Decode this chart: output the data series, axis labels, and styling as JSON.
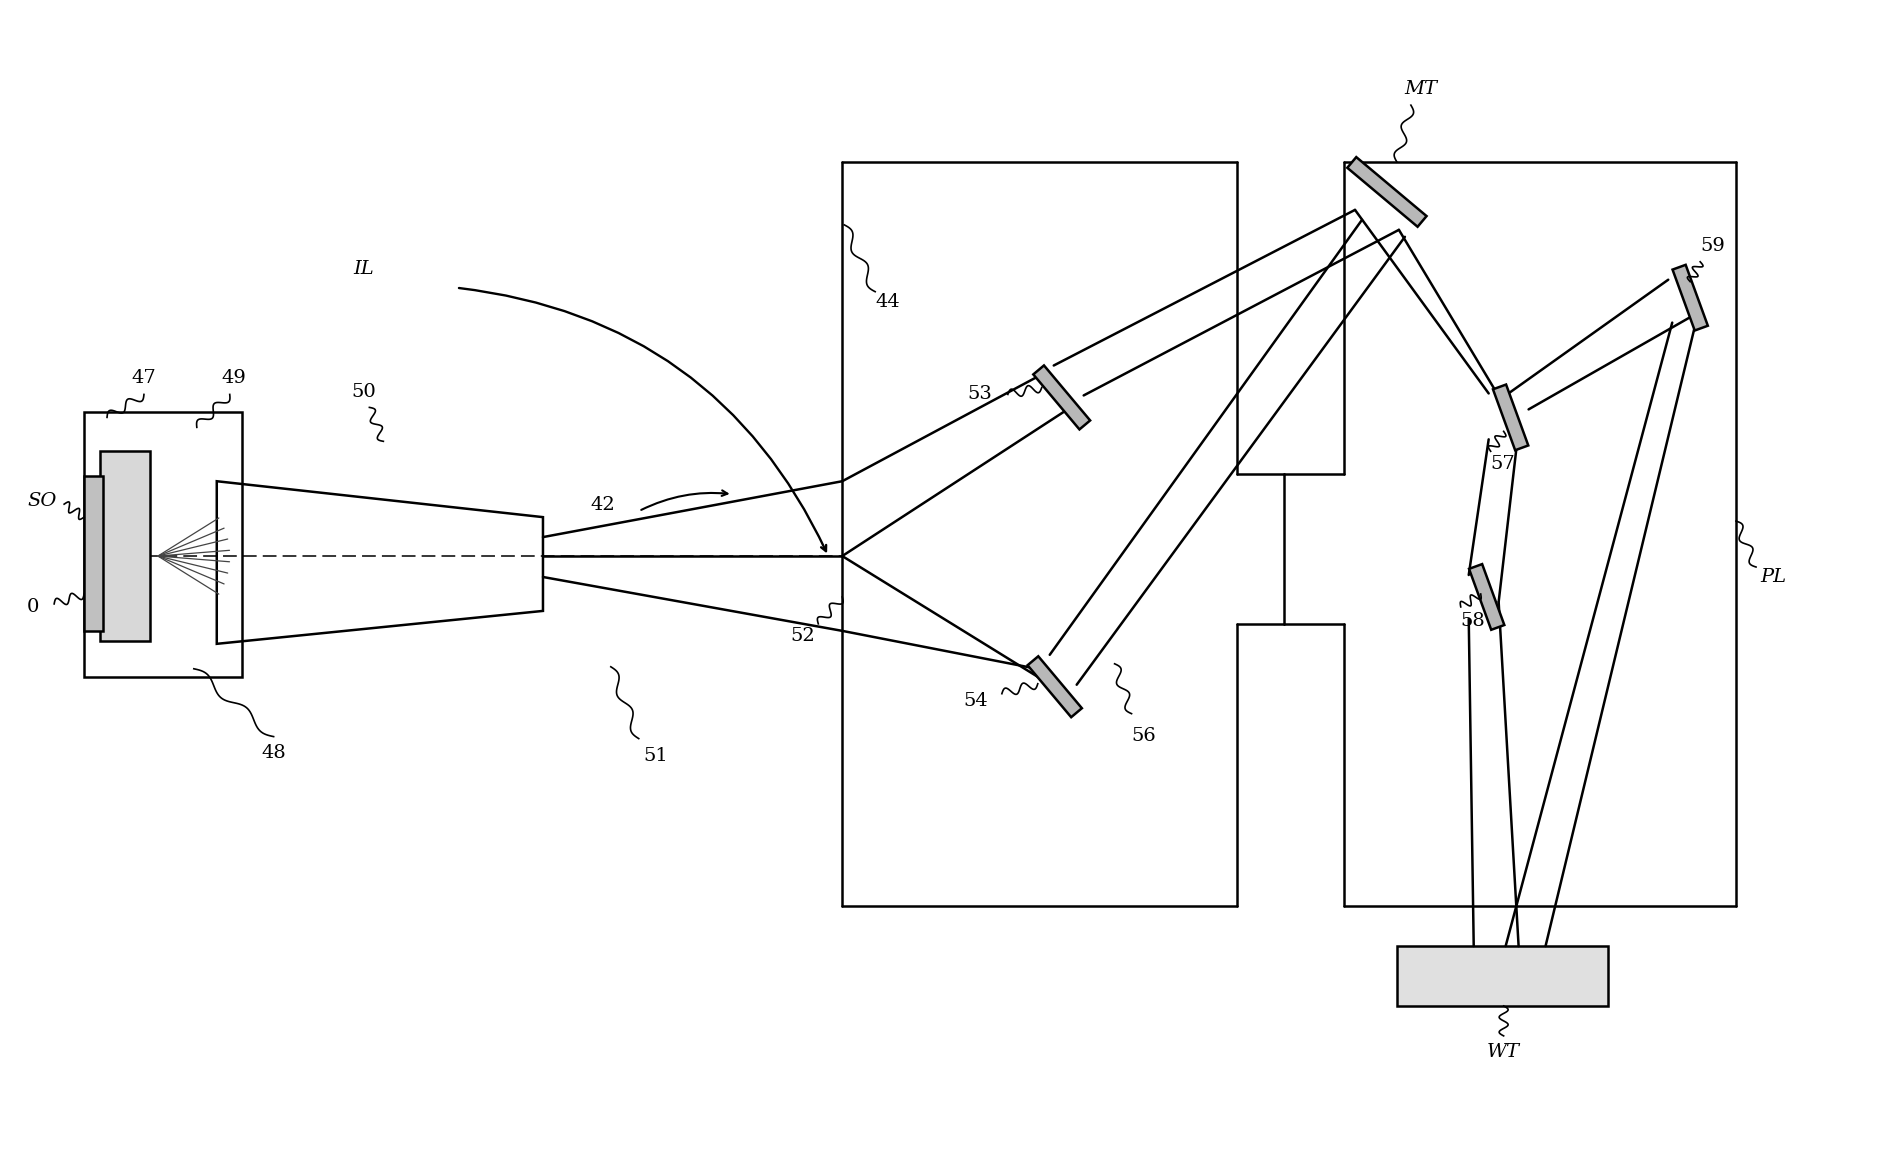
{
  "bg_color": "#ffffff",
  "lc": "#000000",
  "lw": 1.8,
  "fig_w": 18.9,
  "fig_h": 11.49,
  "xlim": [
    0,
    18.9
  ],
  "ylim": [
    0,
    11.49
  ]
}
